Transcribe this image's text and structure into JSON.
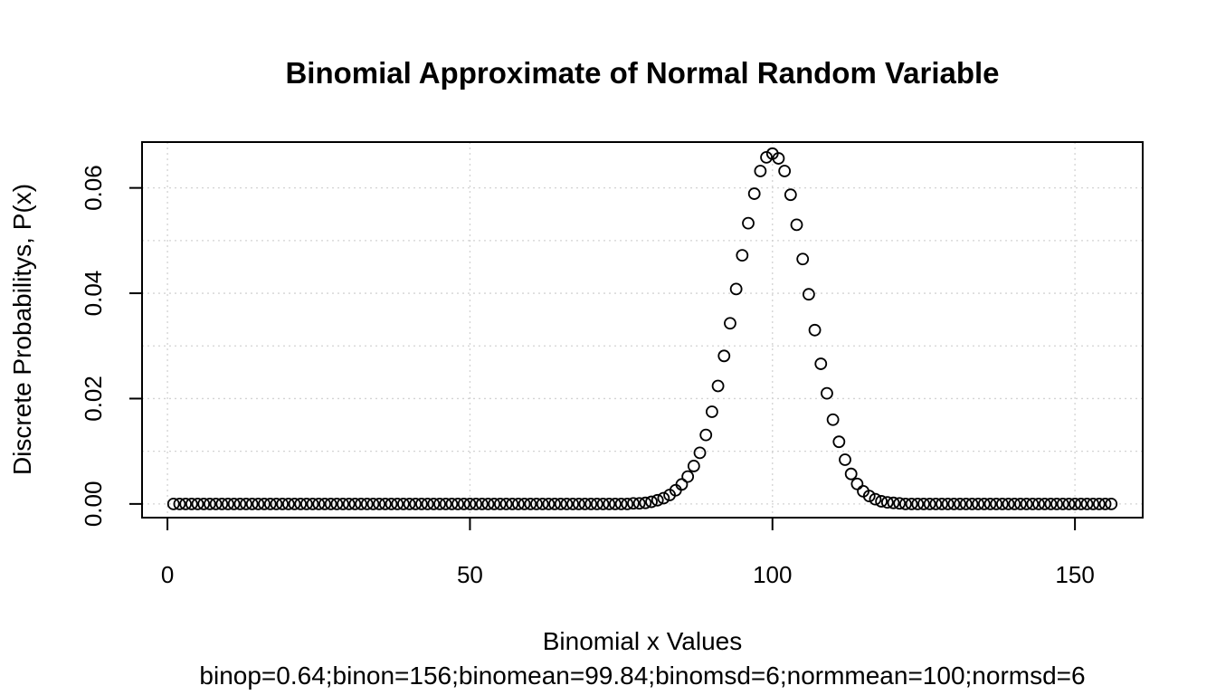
{
  "chart_data": {
    "type": "scatter",
    "title": "Binomial Approximate of Normal Random Variable",
    "xlabel": "Binomial x Values",
    "subtitle": "binop=0.64;binon=156;binomean=99.84;binomsd=6;normmean=100;normsd=6",
    "ylabel": "Discrete Probabilitys, P(x)",
    "xlim": [
      -4.2,
      161.2
    ],
    "ylim": [
      -0.0026,
      0.0687
    ],
    "x_ticks": [
      0,
      50,
      100,
      150
    ],
    "x_tick_labels": [
      "0",
      "50",
      "100",
      "150"
    ],
    "y_ticks": [
      0.0,
      0.02,
      0.04,
      0.06
    ],
    "y_tick_labels": [
      "0.00",
      "0.02",
      "0.04",
      "0.06"
    ],
    "y_grid": [
      0.0,
      0.01,
      0.02,
      0.03,
      0.04,
      0.05,
      0.06
    ],
    "grid": true,
    "marker": "open-circle",
    "series": [
      {
        "x": [
          1,
          2,
          3,
          4,
          5,
          6,
          7,
          8,
          9,
          10,
          11,
          12,
          13,
          14,
          15,
          16,
          17,
          18,
          19,
          20,
          21,
          22,
          23,
          24,
          25,
          26,
          27,
          28,
          29,
          30,
          31,
          32,
          33,
          34,
          35,
          36,
          37,
          38,
          39,
          40,
          41,
          42,
          43,
          44,
          45,
          46,
          47,
          48,
          49,
          50,
          51,
          52,
          53,
          54,
          55,
          56,
          57,
          58,
          59,
          60,
          61,
          62,
          63,
          64,
          65,
          66,
          67,
          68,
          69,
          70,
          71,
          72,
          73,
          74,
          75,
          76,
          77,
          78,
          79,
          80,
          81,
          82,
          83,
          84,
          85,
          86,
          87,
          88,
          89,
          90,
          91,
          92,
          93,
          94,
          95,
          96,
          97,
          98,
          99,
          100,
          101,
          102,
          103,
          104,
          105,
          106,
          107,
          108,
          109,
          110,
          111,
          112,
          113,
          114,
          115,
          116,
          117,
          118,
          119,
          120,
          121,
          122,
          123,
          124,
          125,
          126,
          127,
          128,
          129,
          130,
          131,
          132,
          133,
          134,
          135,
          136,
          137,
          138,
          139,
          140,
          141,
          142,
          143,
          144,
          145,
          146,
          147,
          148,
          149,
          150,
          151,
          152,
          153,
          154,
          155,
          156
        ],
        "y": [
          0,
          0,
          0,
          0,
          0,
          0,
          0,
          0,
          0,
          0,
          0,
          0,
          0,
          0,
          0,
          0,
          0,
          0,
          0,
          0,
          0,
          0,
          0,
          0,
          0,
          0,
          0,
          0,
          0,
          0,
          0,
          0,
          0,
          0,
          0,
          0,
          0,
          0,
          0,
          0,
          0,
          0,
          0,
          0,
          0,
          0,
          0,
          0,
          0,
          0,
          0,
          0,
          0,
          0,
          0,
          0,
          0,
          0,
          0,
          0,
          0,
          0,
          0,
          0,
          0,
          0,
          0,
          0,
          0,
          0,
          0,
          0,
          0,
          0,
          0,
          0,
          0.0001,
          0.0001,
          0.0002,
          0.0004,
          0.0007,
          0.0011,
          0.0017,
          0.0026,
          0.0037,
          0.0052,
          0.0072,
          0.0097,
          0.0131,
          0.0175,
          0.0224,
          0.0281,
          0.0343,
          0.0408,
          0.0472,
          0.0533,
          0.0589,
          0.0632,
          0.0658,
          0.0665,
          0.0656,
          0.0632,
          0.0587,
          0.053,
          0.0465,
          0.0398,
          0.033,
          0.0266,
          0.021,
          0.016,
          0.0118,
          0.0084,
          0.0057,
          0.0038,
          0.0024,
          0.0015,
          0.0009,
          0.0005,
          0.0003,
          0.0002,
          0.0001,
          0,
          0,
          0,
          0,
          0,
          0,
          0,
          0,
          0,
          0,
          0,
          0,
          0,
          0,
          0,
          0,
          0,
          0,
          0,
          0,
          0,
          0,
          0,
          0,
          0,
          0,
          0,
          0,
          0,
          0,
          0,
          0,
          0,
          0,
          0
        ]
      }
    ]
  }
}
